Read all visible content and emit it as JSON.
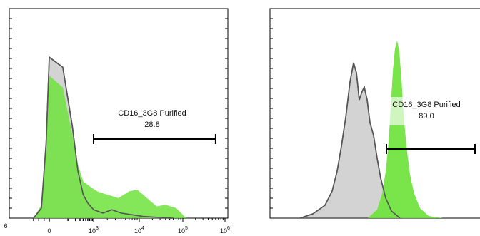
{
  "chart_data": [
    {
      "type": "area",
      "panel": "left",
      "x_scale": "biexponential",
      "x_tick_labels": [
        "0",
        "10^3",
        "10^4",
        "10^5",
        "10^6"
      ],
      "x_tick_values": [
        0,
        1000,
        10000,
        100000,
        1000000
      ],
      "x_tick_partial_left": "6",
      "gate": {
        "label": "CD16_3G8 Purified",
        "value": "28.8",
        "range": [
          1000,
          600000
        ]
      },
      "series": [
        {
          "role": "control",
          "color": "#d3d3d3",
          "outline": "#555555",
          "x_points": [
            -300,
            -150,
            -60,
            0,
            60,
            150,
            250,
            400,
            600,
            1000,
            1600,
            2500,
            4000,
            7000,
            12000,
            25000,
            60000
          ],
          "y_points": [
            0.0,
            0.06,
            0.45,
            0.96,
            0.9,
            0.55,
            0.28,
            0.14,
            0.09,
            0.05,
            0.03,
            0.05,
            0.03,
            0.02,
            0.01,
            0.005,
            0.0
          ]
        },
        {
          "role": "stained",
          "color": "#6ee33c",
          "x_points": [
            -300,
            -150,
            -60,
            0,
            60,
            150,
            250,
            400,
            700,
            1200,
            2000,
            3500,
            6000,
            9000,
            15000,
            25000,
            40000,
            70000,
            120000
          ],
          "y_points": [
            0.0,
            0.08,
            0.5,
            0.85,
            0.78,
            0.5,
            0.32,
            0.22,
            0.19,
            0.16,
            0.14,
            0.12,
            0.16,
            0.17,
            0.12,
            0.07,
            0.08,
            0.06,
            0.0
          ]
        }
      ]
    },
    {
      "type": "area",
      "panel": "right",
      "gate": {
        "label": "CD16_3G8 Purified",
        "value": "89.0"
      },
      "series": [
        {
          "role": "control",
          "color": "#d3d3d3",
          "outline": "#555555"
        },
        {
          "role": "stained",
          "color": "#6ee33c"
        }
      ]
    }
  ]
}
